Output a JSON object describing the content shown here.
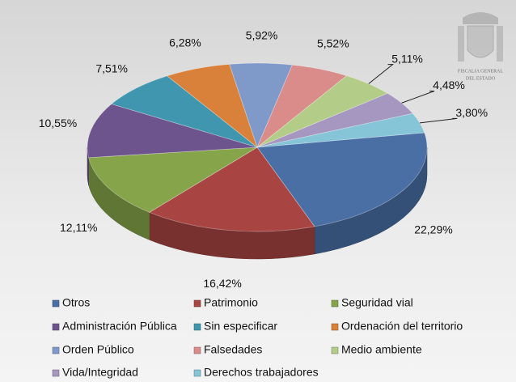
{
  "chart_data": {
    "type": "pie",
    "categories": [
      "Otros",
      "Patrimonio",
      "Seguridad vial",
      "Administración Pública",
      "Sin especificar",
      "Ordenación del territorio",
      "Orden Público",
      "Falsedades",
      "Medio ambiente",
      "Vida/Integridad",
      "Derechos trabajadores"
    ],
    "values": [
      22.29,
      16.42,
      12.11,
      10.55,
      7.51,
      6.28,
      5.92,
      5.52,
      5.11,
      4.48,
      3.8
    ],
    "value_labels": [
      "22,29%",
      "16,42%",
      "12,11%",
      "10,55%",
      "7,51%",
      "6,28%",
      "5,92%",
      "5,52%",
      "5,11%",
      "4,48%",
      "3,80%"
    ],
    "colors": [
      "#4a6fa5",
      "#a84441",
      "#86a44a",
      "#6e548d",
      "#3f96ae",
      "#d9803a",
      "#7f9ac9",
      "#d98c8a",
      "#b3cc87",
      "#a597bf",
      "#86c4d8"
    ],
    "legend": "bottom"
  },
  "emblem": {
    "lines": [
      "FISCALIA GENERAL",
      "DEL ESTADO"
    ]
  }
}
